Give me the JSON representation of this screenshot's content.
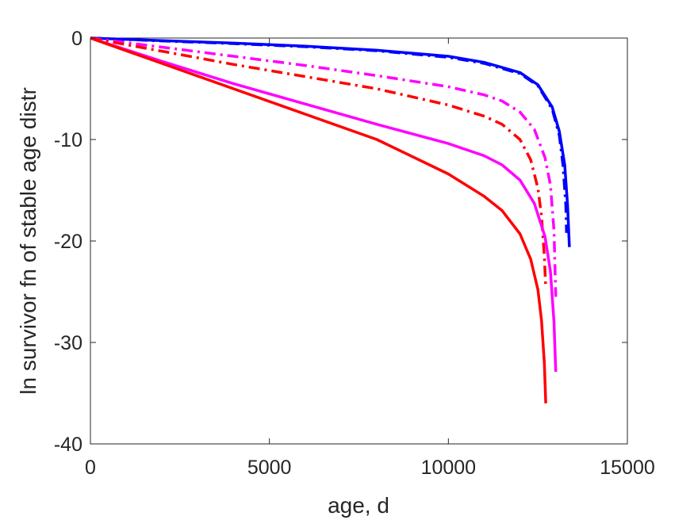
{
  "chart_data": {
    "type": "line",
    "title": "",
    "xlabel": "age, d",
    "ylabel": "ln survivor fn of stable age distr",
    "xlim": [
      0,
      15000
    ],
    "ylim": [
      -40,
      0
    ],
    "xticks": [
      0,
      5000,
      10000,
      15000
    ],
    "yticks": [
      0,
      -10,
      -20,
      -30,
      -40
    ],
    "xtick_labels": [
      "0",
      "5000",
      "10000",
      "15000"
    ],
    "ytick_labels": [
      "0",
      "-10",
      "-20",
      "-30",
      "-40"
    ],
    "grid": false,
    "legend": false,
    "series": [
      {
        "color": "#0000ff",
        "style": "solid",
        "x": [
          0,
          2000,
          4000,
          6000,
          8000,
          10000,
          11000,
          12000,
          12500,
          12900,
          13100,
          13250,
          13330,
          13380
        ],
        "y": [
          0,
          -0.25,
          -0.5,
          -0.8,
          -1.2,
          -1.8,
          -2.4,
          -3.4,
          -4.6,
          -6.8,
          -9.2,
          -12.5,
          -16.5,
          -20.6
        ]
      },
      {
        "color": "#0000ff",
        "style": "dashdot",
        "x": [
          0,
          2000,
          4000,
          6000,
          8000,
          10000,
          11000,
          12000,
          12500,
          12900,
          13100,
          13200,
          13280,
          13300
        ],
        "y": [
          0,
          -0.28,
          -0.55,
          -0.85,
          -1.25,
          -1.9,
          -2.5,
          -3.5,
          -4.7,
          -7.0,
          -9.6,
          -12.5,
          -16.5,
          -19.2
        ]
      },
      {
        "color": "#ff00ff",
        "style": "dashdot",
        "x": [
          0,
          2000,
          4000,
          6000,
          8000,
          10000,
          11000,
          11500,
          12000,
          12400,
          12700,
          12850,
          12950,
          13000
        ],
        "y": [
          0,
          -0.9,
          -1.8,
          -2.7,
          -3.7,
          -4.8,
          -5.6,
          -6.2,
          -7.3,
          -9.0,
          -11.8,
          -14.5,
          -19.0,
          -25.5
        ]
      },
      {
        "color": "#ff0000",
        "style": "dashdot",
        "x": [
          0,
          2000,
          4000,
          6000,
          8000,
          10000,
          11000,
          11500,
          12000,
          12300,
          12500,
          12600,
          12680,
          12720
        ],
        "y": [
          0,
          -1.3,
          -2.6,
          -3.8,
          -5.0,
          -6.6,
          -7.7,
          -8.5,
          -10.0,
          -12.0,
          -14.8,
          -17.5,
          -21.5,
          -24.7
        ]
      },
      {
        "color": "#ff00ff",
        "style": "solid",
        "x": [
          0,
          2000,
          4000,
          6000,
          8000,
          10000,
          11000,
          11500,
          12000,
          12400,
          12700,
          12850,
          12950,
          13000
        ],
        "y": [
          0,
          -2.3,
          -4.5,
          -6.5,
          -8.5,
          -10.4,
          -11.6,
          -12.5,
          -14.0,
          -16.3,
          -19.6,
          -23.0,
          -28.0,
          -32.9
        ]
      },
      {
        "color": "#ff0000",
        "style": "solid",
        "x": [
          0,
          2000,
          4000,
          6000,
          8000,
          10000,
          11000,
          11500,
          12000,
          12300,
          12500,
          12600,
          12680,
          12720
        ],
        "y": [
          0,
          -2.5,
          -5.0,
          -7.5,
          -10.0,
          -13.4,
          -15.6,
          -17.0,
          -19.3,
          -21.8,
          -24.8,
          -27.8,
          -32.0,
          -36.0
        ]
      }
    ]
  }
}
